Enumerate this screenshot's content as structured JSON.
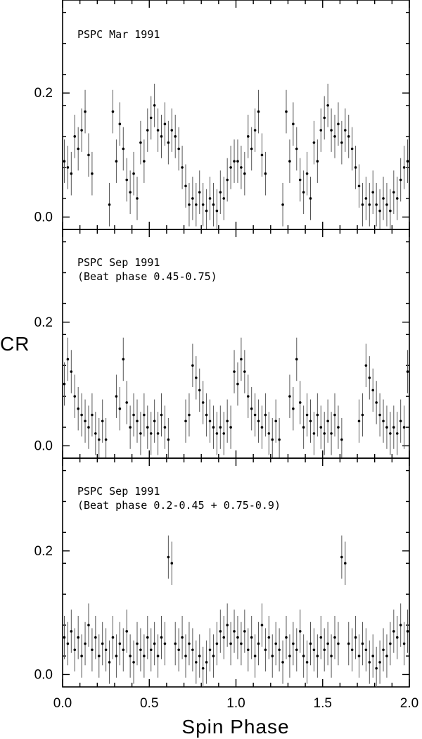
{
  "chart_data": {
    "type": "scatter",
    "xlabel": "Spin Phase",
    "ylabel": "CR",
    "xlim": [
      0.0,
      2.0
    ],
    "x_ticks": [
      0.0,
      0.5,
      1.0,
      1.5,
      2.0
    ],
    "x_tick_labels": [
      "0.0",
      "0.5",
      "1.0",
      "1.5",
      "2.0"
    ],
    "y_ticks": [
      0.0,
      0.2
    ],
    "y_tick_labels": [
      "0.0",
      "0.2"
    ],
    "error_bars": true,
    "panels": [
      {
        "name": "mar1991",
        "annotation": [
          "PSPC Mar 1991"
        ],
        "ylim": [
          -0.02,
          0.35
        ],
        "period_profile": {
          "phase": [
            0.0,
            0.02,
            0.04,
            0.06,
            0.08,
            0.1,
            0.12,
            0.14,
            0.16,
            0.18,
            0.2,
            0.22,
            0.24,
            0.26,
            0.28,
            0.3,
            0.32,
            0.34,
            0.36,
            0.38,
            0.4,
            0.42,
            0.44,
            0.46,
            0.48,
            0.5,
            0.52,
            0.54,
            0.56,
            0.58,
            0.6,
            0.62,
            0.64,
            0.66,
            0.68,
            0.7,
            0.72,
            0.74,
            0.76,
            0.78,
            0.8,
            0.82,
            0.84,
            0.86,
            0.88,
            0.9,
            0.92,
            0.94,
            0.96,
            0.98
          ],
          "cr": [
            0.09,
            0.08,
            0.07,
            0.13,
            0.11,
            0.14,
            0.17,
            0.1,
            0.07,
            null,
            null,
            null,
            null,
            0.02,
            0.17,
            0.09,
            0.15,
            0.11,
            0.06,
            0.04,
            0.07,
            0.03,
            0.12,
            0.09,
            0.14,
            0.16,
            0.18,
            0.14,
            0.13,
            0.15,
            0.12,
            0.14,
            0.13,
            0.11,
            0.08,
            0.05,
            0.02,
            0.03,
            0.02,
            0.04,
            0.02,
            0.01,
            0.03,
            0.02,
            0.01,
            0.04,
            0.03,
            0.06,
            0.08,
            0.09
          ],
          "err": 0.035
        }
      },
      {
        "name": "sep1991-beat-045-075",
        "annotation": [
          "PSPC Sep 1991",
          "(Beat phase 0.45-0.75)"
        ],
        "ylim": [
          -0.02,
          0.35
        ],
        "period_profile": {
          "phase": [
            0.0,
            0.02,
            0.04,
            0.06,
            0.08,
            0.1,
            0.12,
            0.14,
            0.16,
            0.18,
            0.2,
            0.22,
            0.24,
            0.26,
            0.28,
            0.3,
            0.32,
            0.34,
            0.36,
            0.38,
            0.4,
            0.42,
            0.44,
            0.46,
            0.48,
            0.5,
            0.52,
            0.54,
            0.56,
            0.58,
            0.6,
            0.62,
            0.64,
            0.66,
            0.68,
            0.7,
            0.72,
            0.74,
            0.76,
            0.78,
            0.8,
            0.82,
            0.84,
            0.86,
            0.88,
            0.9,
            0.92,
            0.94,
            0.96,
            0.98
          ],
          "cr": [
            0.1,
            0.14,
            0.12,
            0.08,
            0.06,
            0.05,
            0.04,
            0.03,
            0.05,
            0.02,
            0.01,
            0.04,
            0.01,
            null,
            null,
            0.08,
            0.06,
            0.14,
            0.07,
            0.03,
            0.05,
            0.04,
            0.02,
            0.05,
            0.03,
            0.02,
            0.04,
            0.02,
            0.05,
            0.03,
            0.01,
            null,
            null,
            null,
            null,
            0.04,
            0.05,
            0.13,
            0.11,
            0.09,
            0.07,
            0.05,
            0.04,
            0.03,
            0.02,
            0.03,
            0.02,
            0.04,
            0.03,
            0.12
          ],
          "err": 0.035
        }
      },
      {
        "name": "sep1991-beat-020-045-075-090",
        "annotation": [
          "PSPC Sep 1991",
          "(Beat phase 0.2-0.45 + 0.75-0.9)"
        ],
        "ylim": [
          -0.02,
          0.35
        ],
        "period_profile": {
          "phase": [
            0.0,
            0.02,
            0.04,
            0.06,
            0.08,
            0.1,
            0.12,
            0.14,
            0.16,
            0.18,
            0.2,
            0.22,
            0.24,
            0.26,
            0.28,
            0.3,
            0.32,
            0.34,
            0.36,
            0.38,
            0.4,
            0.42,
            0.44,
            0.46,
            0.48,
            0.5,
            0.52,
            0.54,
            0.56,
            0.58,
            0.6,
            0.62,
            0.64,
            0.66,
            0.68,
            0.7,
            0.72,
            0.74,
            0.76,
            0.78,
            0.8,
            0.82,
            0.84,
            0.86,
            0.88,
            0.9,
            0.92,
            0.94,
            0.96,
            0.98
          ],
          "cr": [
            0.06,
            0.05,
            0.07,
            0.04,
            0.06,
            0.03,
            0.05,
            0.08,
            0.04,
            0.06,
            0.03,
            0.05,
            0.04,
            0.02,
            0.06,
            0.03,
            0.05,
            0.04,
            0.07,
            0.03,
            0.02,
            0.05,
            0.04,
            0.03,
            0.06,
            0.04,
            0.05,
            0.03,
            0.06,
            0.05,
            0.19,
            0.18,
            0.05,
            0.04,
            0.06,
            0.03,
            0.05,
            0.04,
            0.02,
            0.03,
            0.01,
            0.02,
            0.04,
            0.03,
            0.05,
            0.07,
            0.06,
            0.08,
            0.05,
            0.07
          ],
          "err": 0.035
        }
      }
    ]
  }
}
